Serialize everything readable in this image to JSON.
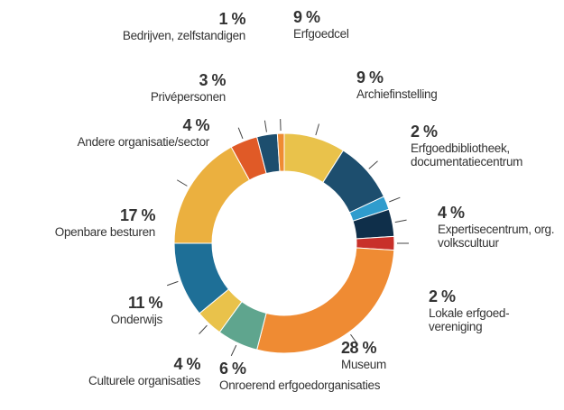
{
  "chart_data": {
    "type": "donut",
    "categories": [
      "Erfgoedcel",
      "Archiefinstelling",
      "Erfgoedbibliotheek, documentatiecentrum",
      "Expertisecentrum, org. volkscultuur",
      "Lokale erfgoed-vereniging",
      "Museum",
      "Onroerend erfgoedorganisaties",
      "Culturele organisaties",
      "Onderwijs",
      "Openbare besturen",
      "Andere organisatie/sector",
      "Privépersonen",
      "Bedrijven, zelfstandigen"
    ],
    "values": [
      9,
      9,
      2,
      4,
      2,
      28,
      6,
      4,
      11,
      17,
      4,
      3,
      1
    ],
    "value_labels": [
      "9 %",
      "9 %",
      "2 %",
      "4 %",
      "2 %",
      "28 %",
      "6 %",
      "4 %",
      "11 %",
      "17 %",
      "4 %",
      "3 %",
      "1 %"
    ],
    "colors": [
      "#e9c24b",
      "#1d4e6e",
      "#2f9ccd",
      "#0f2f4a",
      "#c8302a",
      "#ef8b33",
      "#5fa58e",
      "#e9c24b",
      "#1e6f97",
      "#ebb03f",
      "#e05a27",
      "#1d4e6e",
      "#ef8b33"
    ]
  }
}
